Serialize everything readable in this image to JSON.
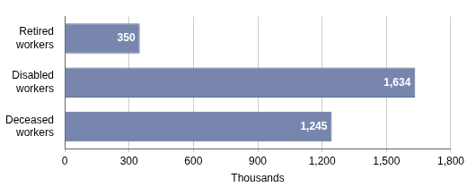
{
  "chart_data": {
    "type": "bar",
    "orientation": "horizontal",
    "categories": [
      "Retired workers",
      "Disabled workers",
      "Deceased workers"
    ],
    "values": [
      350,
      1634,
      1245
    ],
    "value_labels": [
      "350",
      "1,634",
      "1,245"
    ],
    "data_labels": true,
    "color": "#7886ae",
    "x_label": "Thousands",
    "xlim": [
      0,
      1800
    ],
    "xticks": [
      0,
      300,
      600,
      900,
      {
        "value": 1200,
        "label": "1,200"
      },
      {
        "value": 1500,
        "label": "1,500"
      },
      {
        "value": 1800,
        "label": "1,800"
      }
    ],
    "grid": true
  }
}
